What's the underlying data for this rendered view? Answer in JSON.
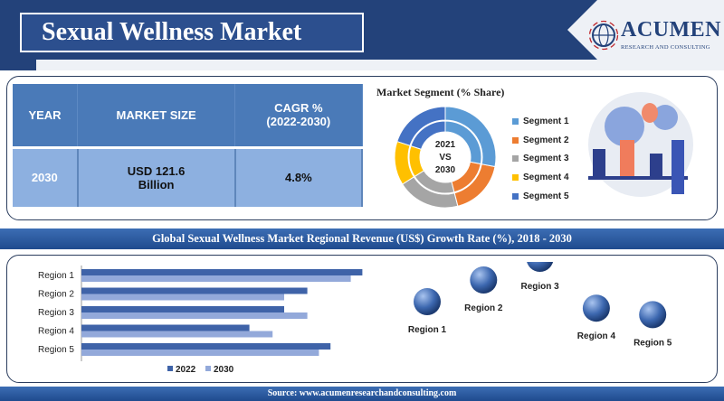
{
  "header": {
    "title": "Sexual Wellness Market",
    "logo_name": "ACUMEN",
    "logo_sub": "RESEARCH AND CONSULTING"
  },
  "summary_table": {
    "headers": [
      "YEAR",
      "MARKET SIZE",
      "CAGR %\n(2022-2030)"
    ],
    "header_cagr_line1": "CAGR %",
    "header_cagr_line2": "(2022-2030)",
    "row": {
      "year": "2030",
      "size_line1": "USD 121.6",
      "size_line2": "Billion",
      "cagr": "4.8%"
    }
  },
  "colors": {
    "navy": "#23427a",
    "bar_2022": "#3f63a8",
    "bar_2030": "#93a9da",
    "seg1": "#5b9bd5",
    "seg2": "#ed7d31",
    "seg3": "#a5a5a5",
    "seg4": "#ffc000",
    "seg5": "#4472c4"
  },
  "regional_title": "Global Sexual Wellness Market Regional Revenue (US$) Growth Rate (%), 2018 - 2030",
  "source": "Source: www.acumenresearchandconsulting.com",
  "chart_data": [
    {
      "type": "pie",
      "title": "Market Segment (% Share)",
      "center_label": [
        "2021",
        "VS",
        "2030"
      ],
      "categories": [
        "Segment 1",
        "Segment 2",
        "Segment 3",
        "Segment 4",
        "Segment 5"
      ],
      "series": [
        {
          "name": "2030",
          "values": [
            28,
            18,
            20,
            14,
            20
          ]
        },
        {
          "name": "2021",
          "values": [
            28,
            18,
            20,
            14,
            20
          ]
        }
      ]
    },
    {
      "type": "bar",
      "orientation": "horizontal",
      "categories": [
        "Region 1",
        "Region 2",
        "Region 3",
        "Region 4",
        "Region 5"
      ],
      "series": [
        {
          "name": "2022",
          "values": [
            97,
            78,
            70,
            58,
            86
          ]
        },
        {
          "name": "2030",
          "values": [
            93,
            70,
            78,
            66,
            82
          ]
        }
      ],
      "legend": "bottom",
      "xlim": [
        0,
        100
      ],
      "axis_labels_shown": false
    },
    {
      "type": "scatter",
      "marker": "bubble",
      "categories": [
        "Region 1",
        "Region 2",
        "Region 3",
        "Region 4",
        "Region 5"
      ],
      "values": [
        2,
        3,
        4,
        1.7,
        1.4
      ]
    }
  ]
}
